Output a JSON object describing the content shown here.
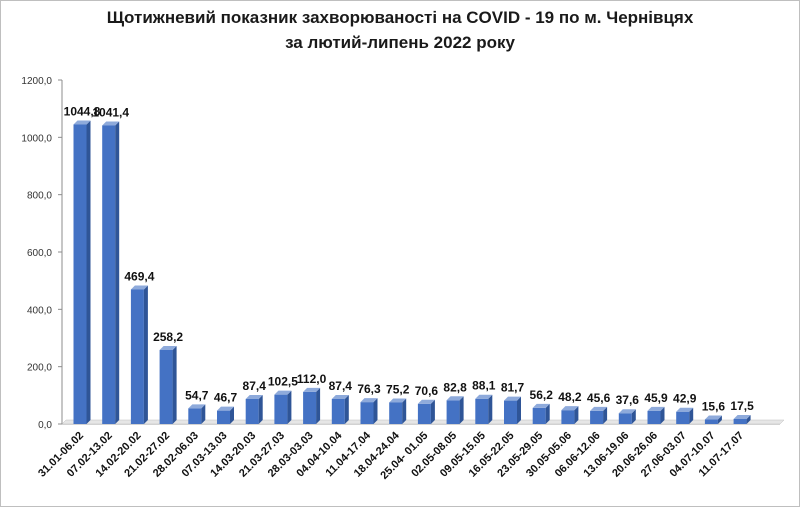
{
  "chart_data": {
    "type": "bar",
    "title": "Щотижневий показник захворюваності на COVID - 19 по м. Чернівцях",
    "subtitle": "за лютий-липень 2022 року",
    "categories": [
      "31.01-06.02",
      "07.02-13.02",
      "14.02-20.02",
      "21.02-27.02",
      "28.02-06.03",
      "07.03-13.03",
      "14.03-20.03",
      "21.03-27.03",
      "28.03-03.03",
      "04.04-10.04",
      "11.04-17.04",
      "18.04-24.04",
      "25.04- 01.05",
      "02.05-08.05",
      "09.05-15.05",
      "16.05-22.05",
      "23.05-29.05",
      "30.05-05.06",
      "06.06-12.06",
      "13.06-19.06",
      "20.06-26.06",
      "27.06-03.07",
      "04.07-10.07",
      "11.07-17.07"
    ],
    "values": [
      1044.8,
      1041.4,
      469.4,
      258.2,
      54.7,
      46.7,
      87.4,
      102.5,
      112.0,
      87.4,
      76.3,
      75.2,
      70.6,
      82.8,
      88.1,
      81.7,
      56.2,
      48.2,
      45.6,
      37.6,
      45.9,
      42.9,
      15.6,
      17.5
    ],
    "data_labels": [
      "1044,8",
      "1041,4",
      "469,4",
      "258,2",
      "54,7",
      "46,7",
      "87,4",
      "102,5",
      "112,0",
      "87,4",
      "76,3",
      "75,2",
      "70,6",
      "82,8",
      "88,1",
      "81,7",
      "56,2",
      "48,2",
      "45,6",
      "37,6",
      "45,9",
      "42,9",
      "15,6",
      "17,5"
    ],
    "y_ticks": [
      "0,0",
      "200,0",
      "400,0",
      "600,0",
      "800,0",
      "1000,0",
      "1200,0"
    ],
    "ylim": [
      0,
      1200
    ],
    "grid": false,
    "legend": "none",
    "bar_color": "#4472c4",
    "bar_side_color": "#2f5597",
    "bar_top_color": "#8eaadb"
  }
}
